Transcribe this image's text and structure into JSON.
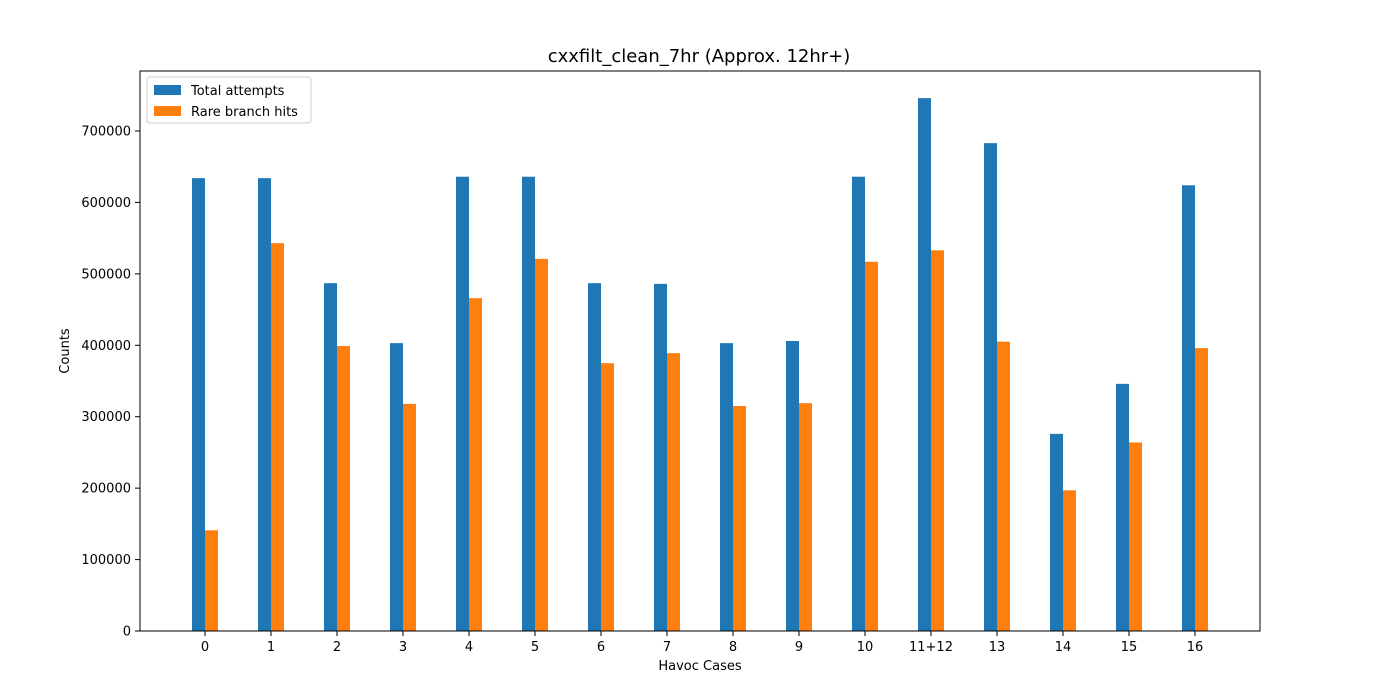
{
  "chart_data": {
    "type": "bar",
    "title": "cxxfilt_clean_7hr (Approx. 12hr+)",
    "xlabel": "Havoc Cases",
    "ylabel": "Counts",
    "categories": [
      "0",
      "1",
      "2",
      "3",
      "4",
      "5",
      "6",
      "7",
      "8",
      "9",
      "10",
      "11+12",
      "13",
      "14",
      "15",
      "16"
    ],
    "series": [
      {
        "name": "Total attempts",
        "color": "#1f77b4",
        "values": [
          634000,
          634000,
          487000,
          403000,
          636000,
          636000,
          487000,
          486000,
          403000,
          406000,
          636000,
          746000,
          683000,
          276000,
          346000,
          624000
        ]
      },
      {
        "name": "Rare branch hits",
        "color": "#ff7f0e",
        "values": [
          141000,
          543000,
          399000,
          318000,
          466000,
          521000,
          375000,
          389000,
          315000,
          319000,
          517000,
          533000,
          405000,
          197000,
          264000,
          396000
        ]
      }
    ],
    "ylim": [
      0,
      784000
    ],
    "yticks": [
      0,
      100000,
      200000,
      300000,
      400000,
      500000,
      600000,
      700000
    ],
    "ytick_labels": [
      "0",
      "100000",
      "200000",
      "300000",
      "400000",
      "500000",
      "600000",
      "700000"
    ],
    "legend_position": "top-left",
    "grid": false
  }
}
